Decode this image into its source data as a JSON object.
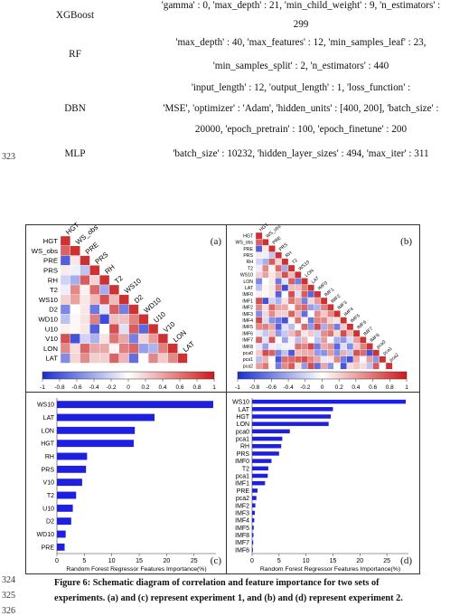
{
  "table": [
    {
      "model": "XGBoost",
      "lines": [
        "'gamma' : 0, 'max_depth' : 21, 'min_child_weight' : 9, 'n_estimators' :",
        "299"
      ]
    },
    {
      "model": "RF",
      "lines": [
        "'max_depth' : 40, 'max_features' : 12, 'min_samples_leaf' : 23,",
        "'min_samples_split' : 2, 'n_estimators' : 440"
      ]
    },
    {
      "model": "DBN",
      "lines": [
        "'input_length' : 12, 'output_length' : 1, 'loss_function' :",
        "'MSE', 'optimizer' : 'Adam', 'hidden_units' : [400, 200], 'batch_size' :",
        "20000, 'epoch_pretrain' : 100, 'epoch_finetune' : 200"
      ]
    },
    {
      "model": "MLP",
      "lines": [
        "'batch_size' : 10232, 'hidden_layer_sizes' : 494, 'max_iter' : 311"
      ]
    }
  ],
  "line_numbers": {
    "a": "323",
    "b": "324",
    "c": "325",
    "d": "326"
  },
  "panel_labels": {
    "a": "(a)",
    "b": "(b)",
    "c": "(c)",
    "d": "(d)"
  },
  "heatmap_a_vars": [
    "HGT",
    "WS_obs",
    "PRE",
    "PRS",
    "RH",
    "T2",
    "WS10",
    "D2",
    "WD10",
    "U10",
    "V10",
    "LON",
    "LAT"
  ],
  "heatmap_b_vars": [
    "HGT",
    "WS_obs",
    "PRE",
    "PRS",
    "RH",
    "T2",
    "WS10",
    "LON",
    "LAT",
    "IMF0",
    "IMF1",
    "IMF2",
    "IMF3",
    "IMF4",
    "IMF5",
    "IMF6",
    "IMF7",
    "IMF8",
    "pca0",
    "pca1",
    "pca2"
  ],
  "colorbar_ticks": [
    "-1",
    "-0.8",
    "-0.6",
    "-0.4",
    "-0.2",
    "0",
    "0.2",
    "0.4",
    "0.6",
    "0.8",
    "1"
  ],
  "colors": {
    "neg": "#1f2fd0",
    "pos": "#d32020",
    "bar": "#1f1fe0"
  },
  "chart_data": [
    {
      "type": "bar",
      "orientation": "horizontal",
      "categories": [
        "WS10",
        "LAT",
        "LON",
        "HGT",
        "RH",
        "PRS",
        "V10",
        "T2",
        "U10",
        "D2",
        "WD10",
        "PRE"
      ],
      "values": [
        28.5,
        17.8,
        14.2,
        14.0,
        5.5,
        5.3,
        4.6,
        3.5,
        2.9,
        2.6,
        1.6,
        1.4
      ],
      "xlabel": "Random Forest Regressor Features Importance(%)",
      "xticks": [
        "0",
        "5",
        "10",
        "15",
        "20",
        "25"
      ],
      "xlim": [
        0,
        29
      ]
    },
    {
      "type": "bar",
      "orientation": "horizontal",
      "categories": [
        "WS10",
        "LAT",
        "HGT",
        "LON",
        "pca0",
        "pca1",
        "RH",
        "PRS",
        "IMF0",
        "T2",
        "pca1",
        "IMF1",
        "PRE",
        "pca2",
        "IMF2",
        "IMF3",
        "IMF4",
        "IMF5",
        "IMF8",
        "IMF7",
        "IMF6"
      ],
      "values": [
        28.5,
        15.0,
        14.6,
        14.2,
        7.0,
        5.6,
        5.4,
        5.0,
        3.6,
        3.0,
        2.9,
        2.4,
        1.0,
        0.8,
        0.6,
        0.5,
        0.4,
        0.3,
        0.25,
        0.2,
        0.15
      ],
      "xlabel": "Random Forest Regressor Features Importance(%)",
      "xticks": [
        "0",
        "5",
        "10",
        "15",
        "20",
        "25"
      ],
      "xlim": [
        0,
        29
      ]
    }
  ],
  "caption": "Figure 6: Schematic diagram of correlation and feature importance for two sets of experiments. (a) and (c) represent experiment 1, and (b) and (d) represent experiment 2."
}
